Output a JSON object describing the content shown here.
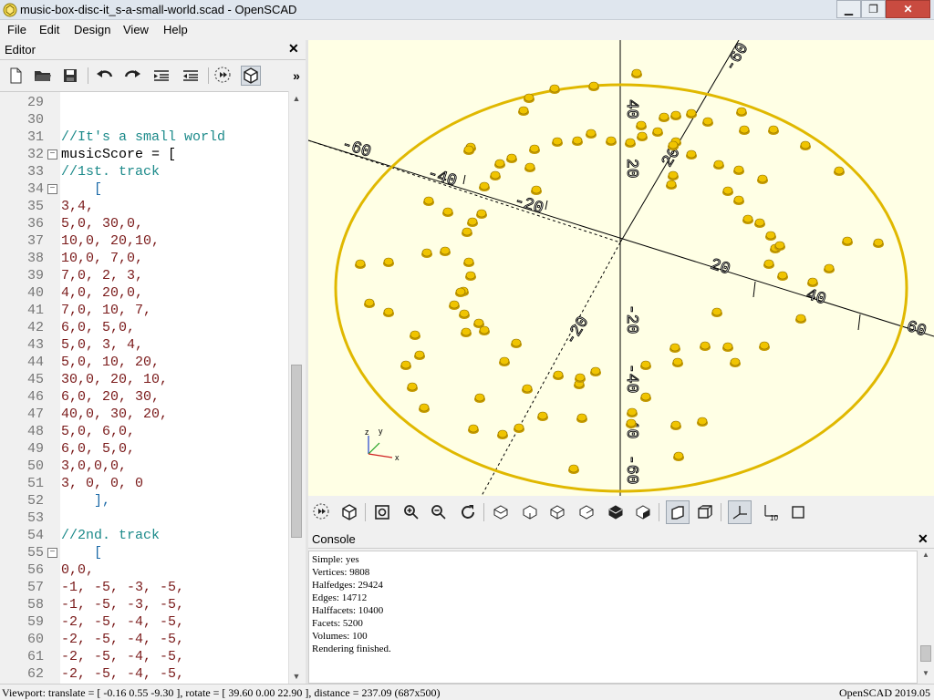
{
  "window": {
    "title": "music-box-disc-it_s-a-small-world.scad - OpenSCAD"
  },
  "menu": {
    "items": [
      "File",
      "Edit",
      "Design",
      "View",
      "Help"
    ]
  },
  "editor": {
    "title": "Editor",
    "lines": [
      {
        "n": "29",
        "text": "",
        "cls": "ident",
        "fold": ""
      },
      {
        "n": "30",
        "text": "",
        "cls": "ident",
        "fold": ""
      },
      {
        "n": "31",
        "text": "//It's a small world",
        "cls": "comment",
        "fold": ""
      },
      {
        "n": "32",
        "text": "musicScore = [",
        "cls": "ident",
        "fold": "−"
      },
      {
        "n": "33",
        "text": "//1st. track",
        "cls": "comment",
        "fold": ""
      },
      {
        "n": "34",
        "text": "    [",
        "cls": "kw",
        "fold": "−"
      },
      {
        "n": "35",
        "text": "3,4,",
        "cls": "num",
        "fold": ""
      },
      {
        "n": "36",
        "text": "5,0, 30,0,",
        "cls": "num",
        "fold": ""
      },
      {
        "n": "37",
        "text": "10,0, 20,10,",
        "cls": "num",
        "fold": ""
      },
      {
        "n": "38",
        "text": "10,0, 7,0,",
        "cls": "num",
        "fold": ""
      },
      {
        "n": "39",
        "text": "7,0, 2, 3,",
        "cls": "num",
        "fold": ""
      },
      {
        "n": "40",
        "text": "4,0, 20,0,",
        "cls": "num",
        "fold": ""
      },
      {
        "n": "41",
        "text": "7,0, 10, 7,",
        "cls": "num",
        "fold": ""
      },
      {
        "n": "42",
        "text": "6,0, 5,0,",
        "cls": "num",
        "fold": ""
      },
      {
        "n": "43",
        "text": "5,0, 3, 4,",
        "cls": "num",
        "fold": ""
      },
      {
        "n": "44",
        "text": "5,0, 10, 20,",
        "cls": "num",
        "fold": ""
      },
      {
        "n": "45",
        "text": "30,0, 20, 10,",
        "cls": "num",
        "fold": ""
      },
      {
        "n": "46",
        "text": "6,0, 20, 30,",
        "cls": "num",
        "fold": ""
      },
      {
        "n": "47",
        "text": "40,0, 30, 20,",
        "cls": "num",
        "fold": ""
      },
      {
        "n": "48",
        "text": "5,0, 6,0,",
        "cls": "num",
        "fold": ""
      },
      {
        "n": "49",
        "text": "6,0, 5,0,",
        "cls": "num",
        "fold": ""
      },
      {
        "n": "50",
        "text": "3,0,0,0,",
        "cls": "num",
        "fold": ""
      },
      {
        "n": "51",
        "text": "3, 0, 0, 0",
        "cls": "num",
        "fold": ""
      },
      {
        "n": "52",
        "text": "    ],",
        "cls": "kw",
        "fold": ""
      },
      {
        "n": "53",
        "text": "",
        "cls": "ident",
        "fold": ""
      },
      {
        "n": "54",
        "text": "//2nd. track",
        "cls": "comment",
        "fold": ""
      },
      {
        "n": "55",
        "text": "    [",
        "cls": "kw",
        "fold": "−"
      },
      {
        "n": "56",
        "text": "0,0,",
        "cls": "num",
        "fold": ""
      },
      {
        "n": "57",
        "text": "-1, -5, -3, -5,",
        "cls": "num",
        "fold": ""
      },
      {
        "n": "58",
        "text": "-1, -5, -3, -5,",
        "cls": "num",
        "fold": ""
      },
      {
        "n": "59",
        "text": "-2, -5, -4, -5,",
        "cls": "num",
        "fold": ""
      },
      {
        "n": "60",
        "text": "-2, -5, -4, -5,",
        "cls": "num",
        "fold": ""
      },
      {
        "n": "61",
        "text": "-2, -5, -4, -5,",
        "cls": "num",
        "fold": ""
      },
      {
        "n": "62",
        "text": "-2, -5, -4, -5,",
        "cls": "num",
        "fold": ""
      }
    ]
  },
  "viewport": {
    "axis_labels": [
      "-60",
      "-40",
      "-20",
      "20",
      "40",
      "60",
      "40",
      "20",
      "20",
      "-20",
      "-40",
      "-40",
      "-60",
      "-60",
      "-20"
    ],
    "axis_indicator": [
      "z",
      "y",
      "x"
    ],
    "colors": {
      "background": "#ffffe5",
      "disc": "#e8c000",
      "pin": "#f0c400",
      "axis": "#000000"
    }
  },
  "console": {
    "title": "Console",
    "lines": [
      "Simple: yes",
      "Vertices: 9808",
      "Halfedges: 29424",
      "Edges: 14712",
      "Halffacets: 10400",
      "Facets: 5200",
      "Volumes: 100",
      "Rendering finished."
    ]
  },
  "status": {
    "left": "Viewport: translate = [ -0.16 0.55 -9.30 ], rotate = [ 39.60 0.00 22.90 ], distance = 237.09 (687x500)",
    "right": "OpenSCAD 2019.05"
  }
}
